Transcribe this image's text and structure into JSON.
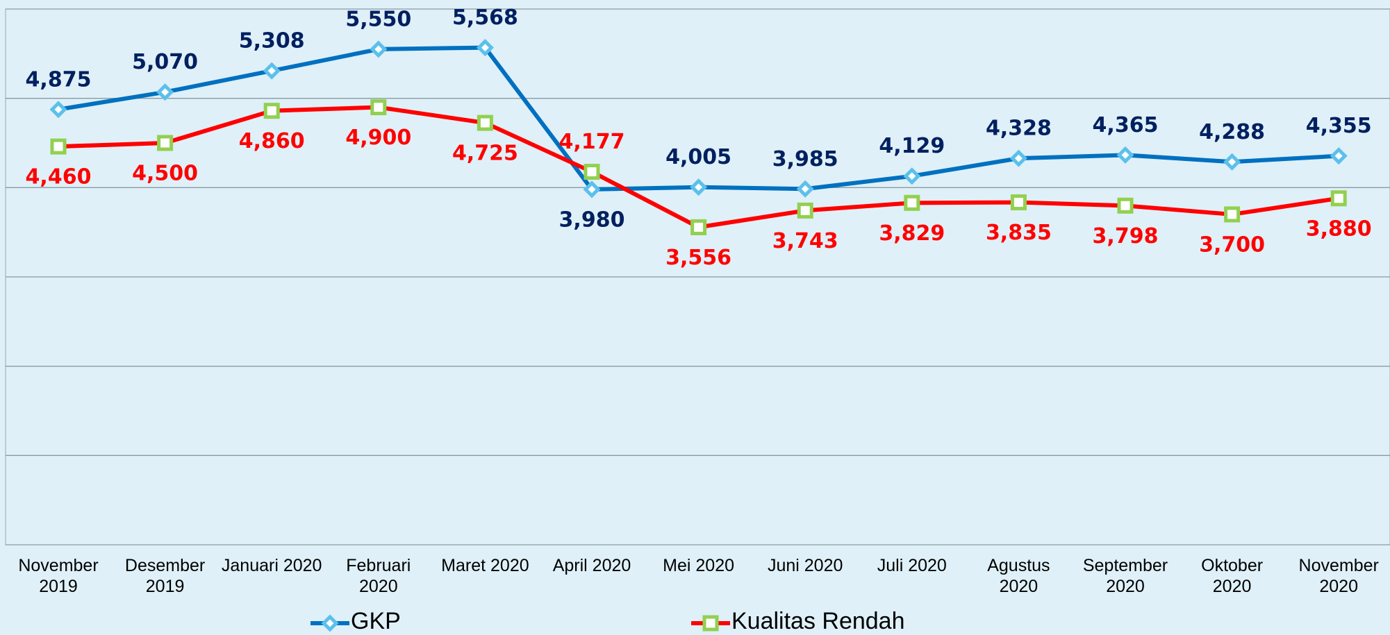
{
  "chart_data": {
    "type": "line",
    "categories": [
      "November 2019",
      "Desember 2019",
      "Januari 2020",
      "Februari 2020",
      "Maret 2020",
      "April 2020",
      "Mei 2020",
      "Juni 2020",
      "Juli 2020",
      "Agustus 2020",
      "September 2020",
      "Oktober 2020",
      "November 2020"
    ],
    "series": [
      {
        "name": "GKP",
        "color": "#0070c0",
        "marker": "diamond",
        "marker_color": "#5bc0eb",
        "label_color": "#002060",
        "values": [
          4875,
          5070,
          5308,
          5550,
          5568,
          3980,
          4005,
          3985,
          4129,
          4328,
          4365,
          4288,
          4355
        ],
        "value_labels": [
          "4,875",
          "5,070",
          "5,308",
          "5,550",
          "5,568",
          "3,980",
          "4,005",
          "3,985",
          "4,129",
          "4,328",
          "4,365",
          "4,288",
          "4,355"
        ]
      },
      {
        "name": "Kualitas Rendah",
        "color": "#ff0000",
        "marker": "square",
        "marker_color": "#92d050",
        "label_color": "#ff0000",
        "values": [
          4460,
          4500,
          4860,
          4900,
          4725,
          4177,
          3556,
          3743,
          3829,
          3835,
          3798,
          3700,
          3880
        ],
        "value_labels": [
          "4,460",
          "4,500",
          "4,860",
          "4,900",
          "4,725",
          "4,177",
          "3,556",
          "3,743",
          "3,829",
          "3,835",
          "3,798",
          "3,700",
          "3,880"
        ]
      }
    ],
    "ylim": [
      0,
      6000
    ],
    "yticks": [
      0,
      1000,
      2000,
      3000,
      4000,
      5000,
      6000
    ],
    "grid": true
  }
}
